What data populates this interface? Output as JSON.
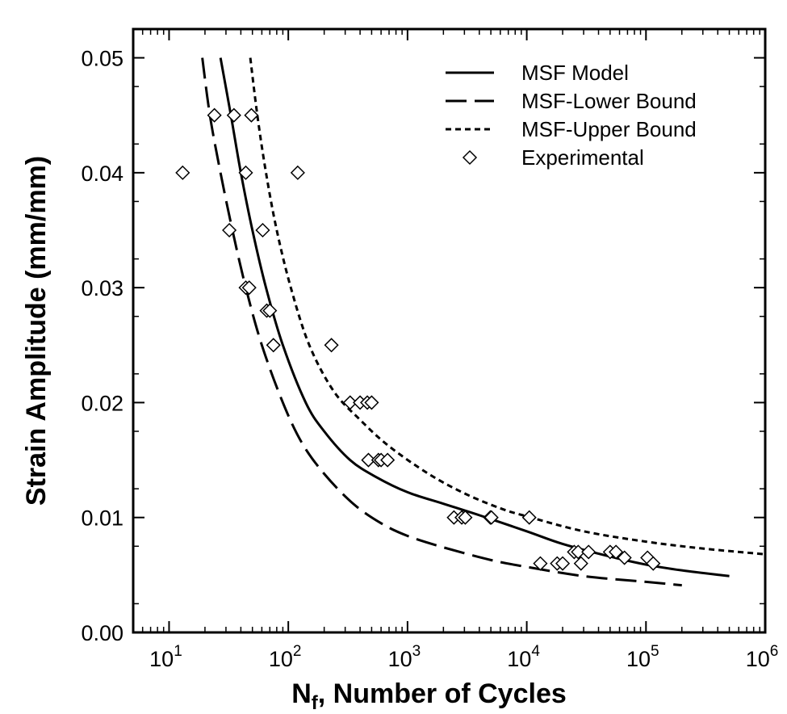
{
  "chart_data": {
    "type": "scatter",
    "xlabel": "Nf, Number of Cycles",
    "xlabel_main": "N",
    "xlabel_sub": "f",
    "xlabel_rest": ", Number of Cycles",
    "ylabel": "Strain Amplitude (mm/mm)",
    "x_scale": "log",
    "xlim": [
      5,
      1000000
    ],
    "ylim": [
      0,
      0.0525
    ],
    "x_ticks": [
      {
        "value": 10,
        "base": "10",
        "exp": "1"
      },
      {
        "value": 100,
        "base": "10",
        "exp": "2"
      },
      {
        "value": 1000,
        "base": "10",
        "exp": "3"
      },
      {
        "value": 10000,
        "base": "10",
        "exp": "4"
      },
      {
        "value": 100000,
        "base": "10",
        "exp": "5"
      },
      {
        "value": 1000000,
        "base": "10",
        "exp": "6"
      }
    ],
    "y_ticks": [
      {
        "value": 0.0,
        "label": "0.00"
      },
      {
        "value": 0.01,
        "label": "0.01"
      },
      {
        "value": 0.02,
        "label": "0.02"
      },
      {
        "value": 0.03,
        "label": "0.03"
      },
      {
        "value": 0.04,
        "label": "0.04"
      },
      {
        "value": 0.05,
        "label": "0.05"
      }
    ],
    "grid": false,
    "legend_position": "top-right",
    "series": [
      {
        "name": "MSF Model",
        "style": "solid",
        "color": "#000000",
        "points": [
          [
            27,
            0.05
          ],
          [
            33,
            0.045
          ],
          [
            40,
            0.04
          ],
          [
            50,
            0.035
          ],
          [
            65,
            0.03
          ],
          [
            90,
            0.025
          ],
          [
            140,
            0.02
          ],
          [
            200,
            0.0175
          ],
          [
            330,
            0.015
          ],
          [
            550,
            0.0135
          ],
          [
            1000,
            0.0122
          ],
          [
            2000,
            0.0112
          ],
          [
            4000,
            0.0102
          ],
          [
            10000,
            0.0088
          ],
          [
            20000,
            0.0077
          ],
          [
            50000,
            0.0066
          ],
          [
            100000,
            0.0059
          ],
          [
            200000,
            0.0054
          ],
          [
            500000,
            0.0049
          ]
        ]
      },
      {
        "name": "MSF-Lower Bound",
        "style": "dashed",
        "color": "#000000",
        "points": [
          [
            19,
            0.05
          ],
          [
            22,
            0.045
          ],
          [
            27,
            0.04
          ],
          [
            34,
            0.035
          ],
          [
            44,
            0.03
          ],
          [
            60,
            0.025
          ],
          [
            90,
            0.02
          ],
          [
            130,
            0.0165
          ],
          [
            200,
            0.0138
          ],
          [
            350,
            0.0112
          ],
          [
            600,
            0.0095
          ],
          [
            1000,
            0.0084
          ],
          [
            2000,
            0.0074
          ],
          [
            5000,
            0.0063
          ],
          [
            10000,
            0.0057
          ],
          [
            30000,
            0.0049
          ],
          [
            100000,
            0.0044
          ],
          [
            200000,
            0.0041
          ]
        ]
      },
      {
        "name": "MSF-Upper Bound",
        "style": "dotted",
        "color": "#000000",
        "points": [
          [
            48,
            0.05
          ],
          [
            55,
            0.045
          ],
          [
            65,
            0.04
          ],
          [
            80,
            0.035
          ],
          [
            105,
            0.03
          ],
          [
            150,
            0.025
          ],
          [
            240,
            0.021
          ],
          [
            400,
            0.0185
          ],
          [
            700,
            0.0162
          ],
          [
            1500,
            0.0138
          ],
          [
            3000,
            0.0121
          ],
          [
            6000,
            0.0108
          ],
          [
            10000,
            0.0101
          ],
          [
            30000,
            0.0088
          ],
          [
            100000,
            0.0079
          ],
          [
            300000,
            0.0073
          ],
          [
            1000000,
            0.0068
          ]
        ]
      }
    ],
    "scatter": {
      "name": "Experimental",
      "marker": "diamond",
      "points": [
        [
          13,
          0.04
        ],
        [
          24,
          0.045
        ],
        [
          35,
          0.045
        ],
        [
          49,
          0.045
        ],
        [
          44,
          0.04
        ],
        [
          120,
          0.04
        ],
        [
          32,
          0.035
        ],
        [
          61,
          0.035
        ],
        [
          44,
          0.03
        ],
        [
          47,
          0.03
        ],
        [
          66,
          0.028
        ],
        [
          70,
          0.028
        ],
        [
          75,
          0.025
        ],
        [
          230,
          0.025
        ],
        [
          330,
          0.02
        ],
        [
          400,
          0.02
        ],
        [
          460,
          0.02
        ],
        [
          500,
          0.02
        ],
        [
          470,
          0.015
        ],
        [
          570,
          0.015
        ],
        [
          600,
          0.015
        ],
        [
          680,
          0.015
        ],
        [
          2450,
          0.01
        ],
        [
          2850,
          0.01
        ],
        [
          3050,
          0.01
        ],
        [
          4950,
          0.01
        ],
        [
          5050,
          0.01
        ],
        [
          10500,
          0.01
        ],
        [
          13000,
          0.006
        ],
        [
          18000,
          0.006
        ],
        [
          20000,
          0.006
        ],
        [
          25000,
          0.007
        ],
        [
          27000,
          0.007
        ],
        [
          28500,
          0.006
        ],
        [
          33000,
          0.007
        ],
        [
          50000,
          0.007
        ],
        [
          56000,
          0.007
        ],
        [
          66000,
          0.0065
        ],
        [
          103000,
          0.0065
        ],
        [
          115000,
          0.006
        ]
      ]
    }
  }
}
